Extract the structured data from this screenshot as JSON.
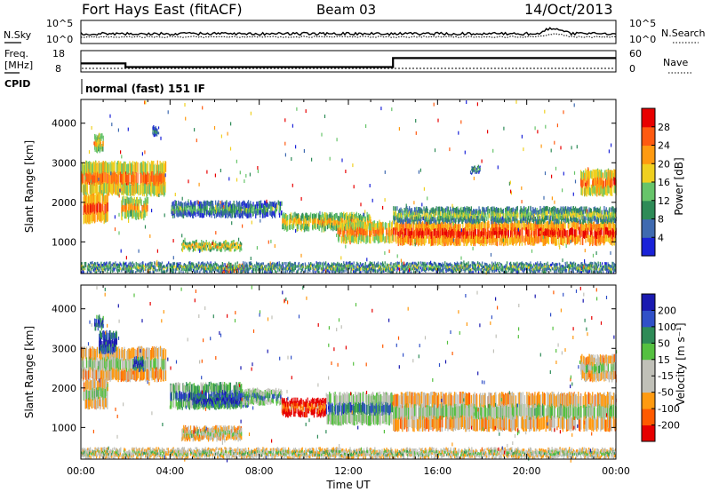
{
  "header": {
    "station": "Fort Hays East (fitACF)",
    "beam": "Beam 03",
    "date": "14/Oct/2013",
    "cpid": "normal (fast) 151 IF"
  },
  "labels": {
    "nsky": "N.Sky",
    "nsearch": "N.Search",
    "freq": "Freq.",
    "freq_unit": "[MHz]",
    "nave": "Nave",
    "cpid": "CPID"
  },
  "chart_data": [
    {
      "type": "line",
      "title": "",
      "series": [
        {
          "name": "N.Sky"
        },
        {
          "name": "N.Search"
        }
      ],
      "ylabel_left": "N.Sky",
      "ylabel_right": "N.Search",
      "yticks_left": [
        "10^5",
        "10^0"
      ],
      "yticks_right": [
        "10^5",
        "10^0"
      ],
      "xlim": [
        0,
        24
      ]
    },
    {
      "type": "line",
      "ylabel_left": "Freq. [MHz]",
      "ylabel_right": "Nave",
      "yticks_left": [
        "18",
        "8"
      ],
      "yticks_right": [
        "60",
        "0"
      ],
      "freq_mhz": {
        "x": [
          0,
          2,
          2,
          14,
          14,
          24
        ],
        "y": [
          12,
          12,
          10.3,
          10.3,
          14.5,
          14.5
        ]
      },
      "nave_level": 4
    },
    {
      "type": "heatmap",
      "name": "power",
      "ylabel": "Slant Range [km]",
      "yticks": [
        "1000",
        "2000",
        "3000",
        "4000"
      ],
      "ylim": [
        200,
        4600
      ],
      "xlim": [
        0,
        24
      ],
      "colorbar_label": "Power [dB]",
      "colorbar_ticks": [
        "4",
        "8",
        "12",
        "16",
        "20",
        "24",
        "28"
      ],
      "echo_bands": [
        {
          "t0": 0.0,
          "t1": 3.8,
          "r0": 2200,
          "r1": 3000,
          "level": 0.72
        },
        {
          "t0": 0.1,
          "t1": 1.2,
          "r0": 1500,
          "r1": 2200,
          "level": 0.8
        },
        {
          "t0": 0.6,
          "t1": 1.0,
          "r0": 3300,
          "r1": 3700,
          "level": 0.6
        },
        {
          "t0": 1.8,
          "t1": 3.0,
          "r0": 1600,
          "r1": 2100,
          "level": 0.65
        },
        {
          "t0": 3.2,
          "t1": 3.5,
          "r0": 3700,
          "r1": 3900,
          "level": 0.3
        },
        {
          "t0": 4.0,
          "t1": 9.0,
          "r0": 1650,
          "r1": 2000,
          "level": 0.35
        },
        {
          "t0": 4.5,
          "t1": 7.2,
          "r0": 800,
          "r1": 1000,
          "level": 0.6
        },
        {
          "t0": 9.0,
          "t1": 13.0,
          "r0": 1300,
          "r1": 1700,
          "level": 0.6
        },
        {
          "t0": 11.5,
          "t1": 14.0,
          "r0": 1000,
          "r1": 1500,
          "level": 0.7
        },
        {
          "t0": 14.0,
          "t1": 24.0,
          "r0": 950,
          "r1": 1500,
          "level": 0.85
        },
        {
          "t0": 14.0,
          "t1": 24.0,
          "r0": 1500,
          "r1": 1850,
          "level": 0.45
        },
        {
          "t0": 17.5,
          "t1": 17.9,
          "r0": 2750,
          "r1": 2900,
          "level": 0.35
        },
        {
          "t0": 22.4,
          "t1": 24.0,
          "r0": 2200,
          "r1": 2800,
          "level": 0.72
        },
        {
          "t0": 6.3,
          "t1": 7.3,
          "r0": 250,
          "r1": 400,
          "level": 0.95
        },
        {
          "t0": 0.0,
          "t1": 24.0,
          "r0": 250,
          "r1": 450,
          "level": 0.4
        }
      ]
    },
    {
      "type": "heatmap",
      "name": "velocity",
      "ylabel": "Slant Range [km]",
      "yticks": [
        "1000",
        "2000",
        "3000",
        "4000"
      ],
      "ylim": [
        200,
        4600
      ],
      "xlim": [
        0,
        24
      ],
      "xlabel": "Time UT",
      "xticks": [
        "00:00",
        "04:00",
        "08:00",
        "12:00",
        "16:00",
        "20:00",
        "00:00"
      ],
      "colorbar_label": "Velocity [m s⁻¹]",
      "colorbar_ticks": [
        "200",
        "100",
        "50",
        "15",
        "-15",
        "-50",
        "-100",
        "-200"
      ],
      "echo_bands": [
        {
          "t0": 0.0,
          "t1": 3.8,
          "r0": 2200,
          "r1": 3000,
          "level": 0.5
        },
        {
          "t0": 0.1,
          "t1": 1.2,
          "r0": 1500,
          "r1": 2200,
          "level": 0.5
        },
        {
          "t0": 0.8,
          "t1": 1.6,
          "r0": 2900,
          "r1": 3400,
          "level": 0.97
        },
        {
          "t0": 2.3,
          "t1": 2.8,
          "r0": 2450,
          "r1": 2750,
          "level": 0.96
        },
        {
          "t0": 0.6,
          "t1": 1.0,
          "r0": 3500,
          "r1": 3800,
          "level": 0.9
        },
        {
          "t0": 4.0,
          "t1": 7.2,
          "r0": 1500,
          "r1": 2100,
          "level": 0.8
        },
        {
          "t0": 5.0,
          "t1": 7.5,
          "r0": 1550,
          "r1": 1800,
          "level": 0.95
        },
        {
          "t0": 4.5,
          "t1": 7.2,
          "r0": 700,
          "r1": 1000,
          "level": 0.5
        },
        {
          "t0": 7.2,
          "t1": 9.0,
          "r0": 1600,
          "r1": 1950,
          "level": 0.72
        },
        {
          "t0": 9.0,
          "t1": 11.0,
          "r0": 1300,
          "r1": 1700,
          "level": 0.18
        },
        {
          "t0": 11.0,
          "t1": 14.0,
          "r0": 1100,
          "r1": 1850,
          "level": 0.72
        },
        {
          "t0": 14.0,
          "t1": 24.0,
          "r0": 950,
          "r1": 1850,
          "level": 0.5
        },
        {
          "t0": 22.4,
          "t1": 24.0,
          "r0": 2200,
          "r1": 2800,
          "level": 0.5
        },
        {
          "t0": 0.0,
          "t1": 24.0,
          "r0": 250,
          "r1": 450,
          "level": 0.55
        }
      ]
    }
  ],
  "colors": {
    "power_scale": [
      "#1a22d8",
      "#3f6ab0",
      "#2e8b57",
      "#67c46a",
      "#f0d020",
      "#ff9a10",
      "#ff5a10",
      "#e80000"
    ],
    "velocity_scale": [
      "#e60000",
      "#ff5a00",
      "#ff9a10",
      "#c0c0b8",
      "#c0c0b8",
      "#55c040",
      "#2e8b57",
      "#3050c8",
      "#1a1ab0"
    ]
  }
}
